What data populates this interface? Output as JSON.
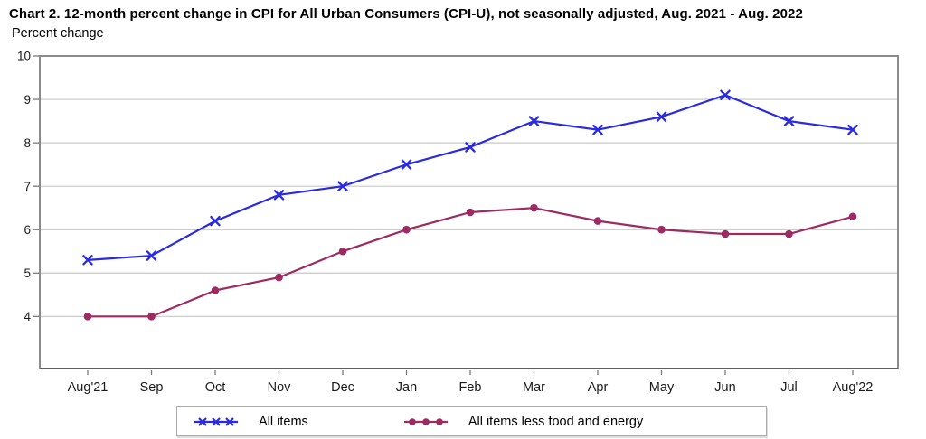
{
  "header": {
    "title": "Chart 2. 12-month percent change in CPI for All Urban Consumers (CPI-U), not seasonally adjusted, Aug. 2021 - Aug. 2022",
    "axis_unit_label": "Percent change"
  },
  "chart_data": {
    "type": "line",
    "title": "Chart 2. 12-month percent change in CPI for All Urban Consumers (CPI-U), not seasonally adjusted, Aug. 2021 - Aug. 2022",
    "ylabel": "Percent change",
    "xlabel": "",
    "categories": [
      "Aug'21",
      "Sep",
      "Oct",
      "Nov",
      "Dec",
      "Jan",
      "Feb",
      "Mar",
      "Apr",
      "May",
      "Jun",
      "Jul",
      "Aug'22"
    ],
    "series": [
      {
        "name": "All items",
        "marker": "x",
        "color": "#2a2ae0",
        "values": [
          5.3,
          5.4,
          6.2,
          6.8,
          7.0,
          7.5,
          7.9,
          8.5,
          8.3,
          8.6,
          9.1,
          8.5,
          8.3
        ]
      },
      {
        "name": "All items less food and energy",
        "marker": "circle",
        "color": "#9e2a62",
        "values": [
          4.0,
          4.0,
          4.6,
          4.9,
          5.5,
          6.0,
          6.4,
          6.5,
          6.2,
          6.0,
          5.9,
          5.9,
          6.3
        ]
      }
    ],
    "ylim": [
      2.8,
      10
    ],
    "yticks": [
      4,
      5,
      6,
      7,
      8,
      9,
      10
    ],
    "grid": "horizontal",
    "legend_position": "bottom"
  },
  "palette": {
    "gridline": "#c8c8c8",
    "plot_border": "#8c8c8c",
    "axis_line": "#606060",
    "tick": "#7a7a7a",
    "tick_label": "#1a1a1a"
  }
}
